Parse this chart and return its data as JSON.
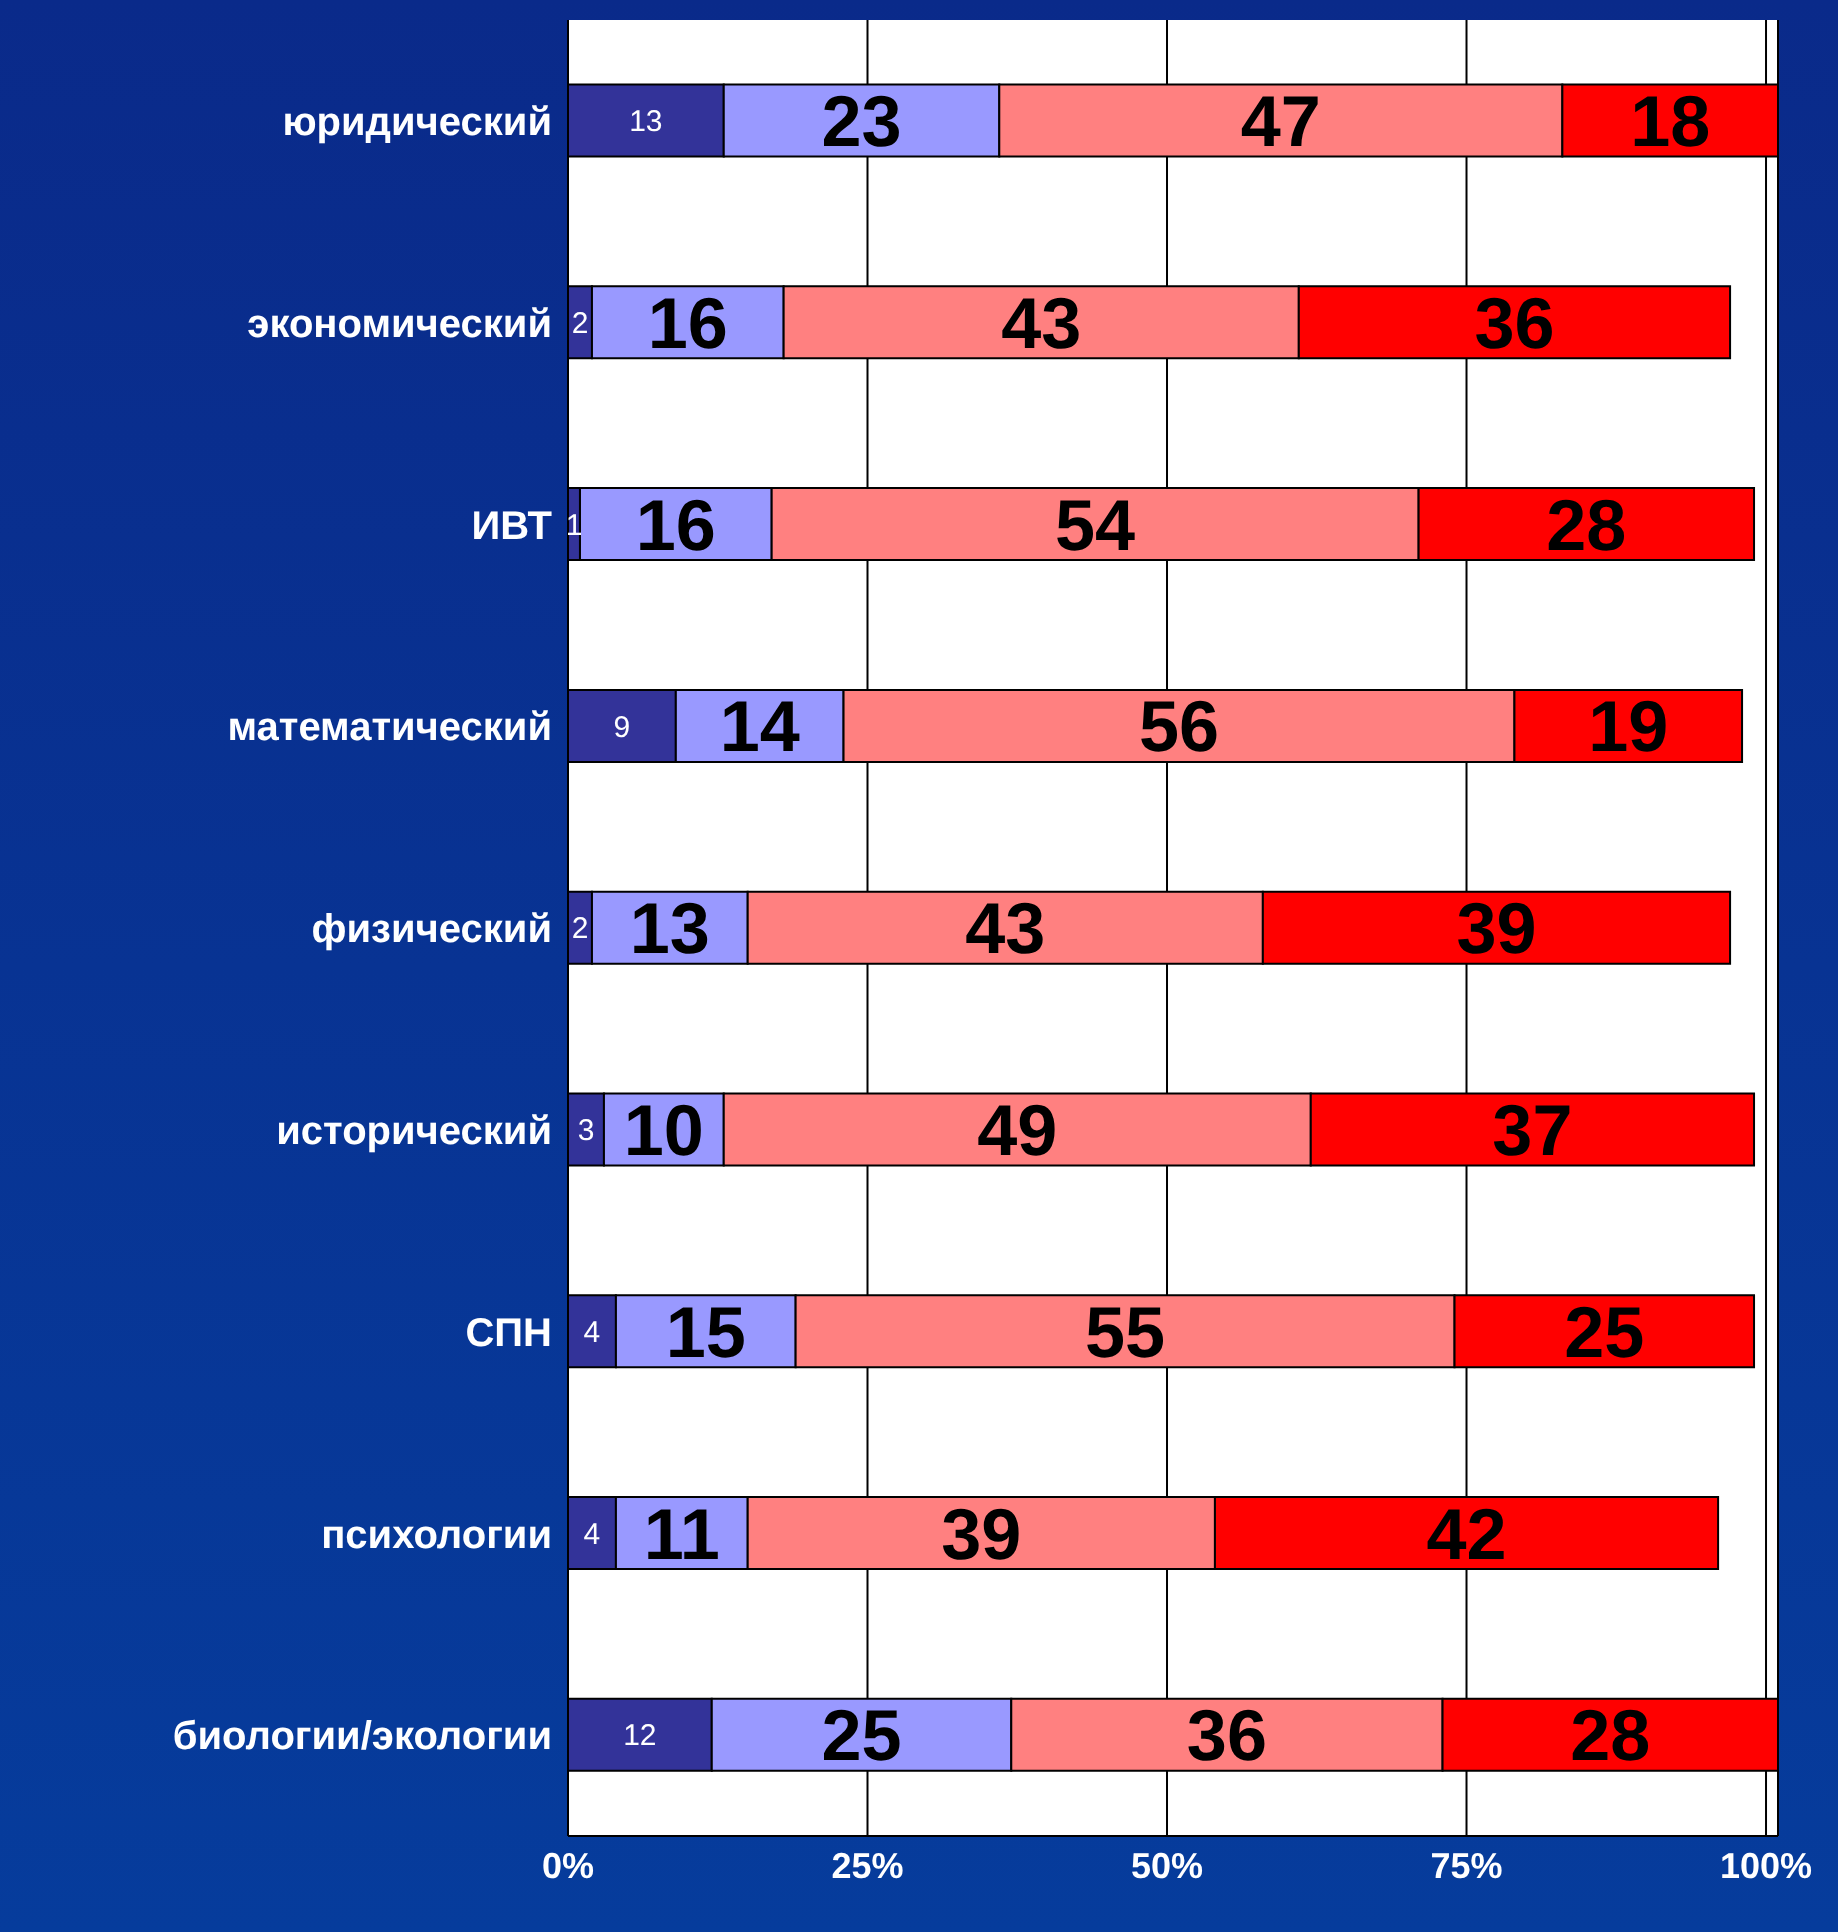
{
  "chart_data": {
    "type": "bar",
    "orientation": "horizontal",
    "stacked": true,
    "data_labels": true,
    "grid": "x",
    "legend": false,
    "categories": [
      "юридический",
      "экономический",
      "ИВТ",
      "математический",
      "физический",
      "исторический",
      "СПН",
      "психологии",
      "биологии/экологии"
    ],
    "series": [
      {
        "color": "#333399",
        "values": [
          13,
          2,
          1,
          9,
          2,
          3,
          4,
          4,
          12
        ]
      },
      {
        "color": "#9999ff",
        "values": [
          23,
          16,
          16,
          14,
          13,
          10,
          15,
          11,
          25
        ]
      },
      {
        "color": "#ff8080",
        "values": [
          47,
          43,
          54,
          56,
          43,
          49,
          55,
          39,
          36
        ]
      },
      {
        "color": "#ff0000",
        "values": [
          18,
          36,
          28,
          19,
          39,
          37,
          25,
          42,
          28
        ]
      }
    ],
    "xlim": [
      0,
      101
    ],
    "xticks": [
      {
        "value": 0,
        "label": "0%"
      },
      {
        "value": 25,
        "label": "25%"
      },
      {
        "value": 50,
        "label": "50%"
      },
      {
        "value": 75,
        "label": "75%"
      },
      {
        "value": 100,
        "label": "100%"
      }
    ]
  }
}
